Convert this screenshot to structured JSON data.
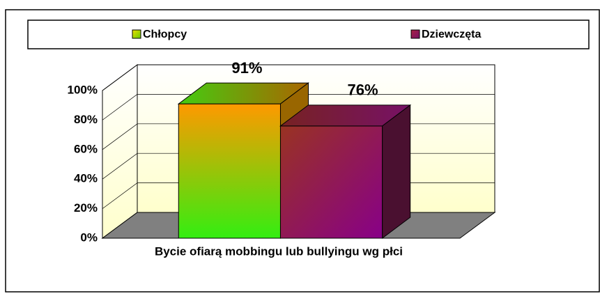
{
  "chart_data": {
    "type": "bar3d",
    "categories": [
      "Bycie ofiarą mobbingu lub bullyingu wg płci"
    ],
    "series": [
      {
        "name": "Chłopcy",
        "color": "#c8d400",
        "values": [
          91
        ],
        "value_labels": [
          "91%"
        ]
      },
      {
        "name": "Dziewczęta",
        "color": "#993366",
        "values": [
          76
        ],
        "value_labels": [
          "76%"
        ]
      }
    ],
    "ylim": [
      0,
      100
    ],
    "yticks": [
      {
        "value": 0,
        "label": "0%"
      },
      {
        "value": 20,
        "label": "20%"
      },
      {
        "value": 40,
        "label": "40%"
      },
      {
        "value": 60,
        "label": "60%"
      },
      {
        "value": 80,
        "label": "80%"
      },
      {
        "value": 100,
        "label": "100%"
      }
    ],
    "grid": true,
    "legend": "top"
  }
}
